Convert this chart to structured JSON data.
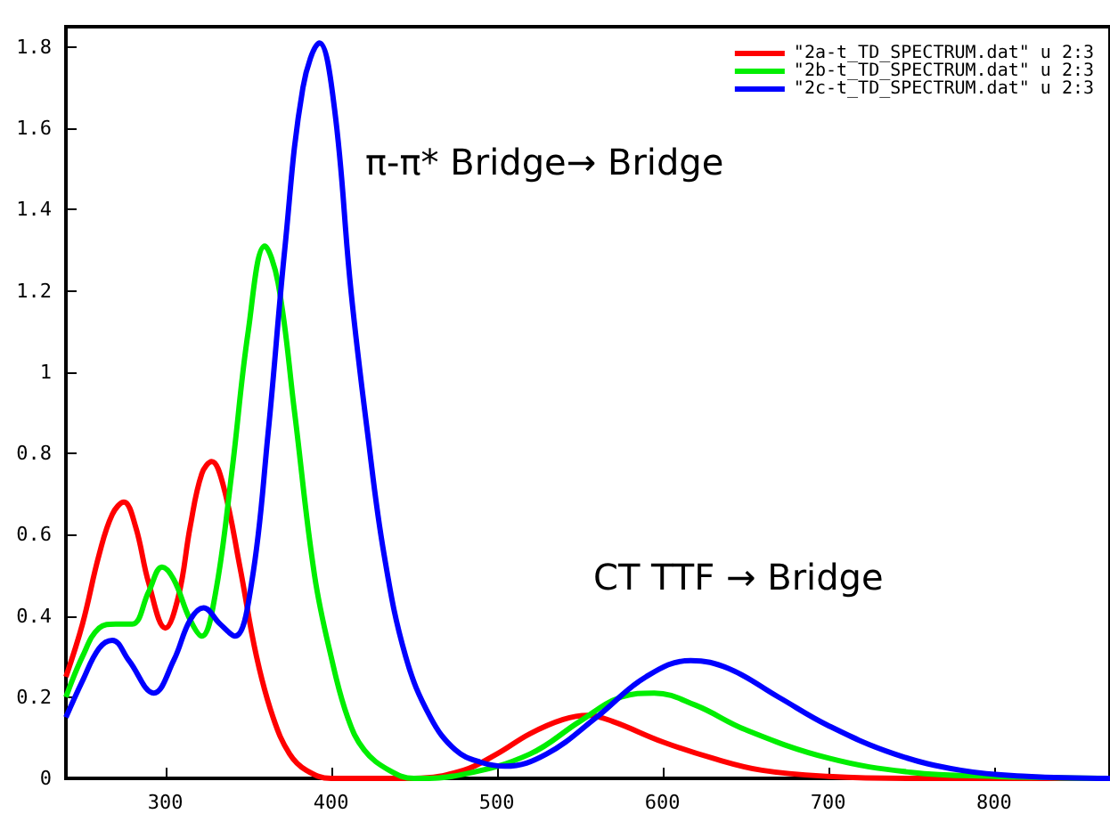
{
  "chart_data": {
    "type": "line",
    "xlim": [
      240,
      870
    ],
    "ylim": [
      0,
      1.85
    ],
    "xticks": [
      300,
      400,
      500,
      600,
      700,
      800
    ],
    "yticks": [
      0,
      0.2,
      0.4,
      0.6,
      0.8,
      1,
      1.2,
      1.4,
      1.6,
      1.8
    ],
    "grid": false,
    "legend": "top right",
    "marker": "none",
    "line_style": "solid",
    "annotations": [
      "π-π* Bridge→ Bridge",
      "CT TTF → Bridge"
    ],
    "series": [
      {
        "name": "\"2a-t_TD_SPECTRUM.dat\" u 2:3",
        "color": "#ff0000",
        "x": [
          240,
          250,
          260,
          268,
          275,
          282,
          290,
          300,
          308,
          315,
          322,
          328,
          335,
          345,
          355,
          365,
          375,
          385,
          400,
          450,
          480,
          500,
          520,
          540,
          555,
          570,
          600,
          630,
          660,
          700,
          750,
          870
        ],
        "values": [
          0.25,
          0.38,
          0.55,
          0.65,
          0.68,
          0.62,
          0.48,
          0.37,
          0.45,
          0.62,
          0.75,
          0.78,
          0.72,
          0.52,
          0.3,
          0.15,
          0.06,
          0.02,
          0,
          0,
          0.02,
          0.06,
          0.11,
          0.145,
          0.155,
          0.14,
          0.09,
          0.05,
          0.02,
          0.005,
          0,
          0
        ]
      },
      {
        "name": "\"2b-t_TD_SPECTRUM.dat\" u 2:3",
        "color": "#00ee00",
        "x": [
          240,
          250,
          260,
          270,
          280,
          290,
          298,
          305,
          315,
          322,
          330,
          340,
          350,
          360,
          368,
          378,
          390,
          400,
          410,
          420,
          435,
          450,
          480,
          520,
          550,
          575,
          595,
          620,
          650,
          700,
          750,
          800,
          870
        ],
        "values": [
          0.2,
          0.3,
          0.37,
          0.38,
          0.38,
          0.46,
          0.52,
          0.49,
          0.39,
          0.35,
          0.45,
          0.75,
          1.1,
          1.31,
          1.22,
          0.9,
          0.5,
          0.3,
          0.15,
          0.07,
          0.02,
          0,
          0.01,
          0.06,
          0.14,
          0.2,
          0.21,
          0.18,
          0.12,
          0.05,
          0.015,
          0.005,
          0
        ]
      },
      {
        "name": "\"2c-t_TD_SPECTRUM.dat\" u 2:3",
        "color": "#0000ff",
        "x": [
          240,
          250,
          260,
          268,
          278,
          293,
          305,
          315,
          323,
          333,
          342,
          352,
          362,
          372,
          383,
          393,
          402,
          412,
          422,
          432,
          445,
          460,
          475,
          490,
          505,
          530,
          560,
          590,
          617,
          640,
          670,
          700,
          740,
          780,
          820,
          870
        ],
        "values": [
          0.15,
          0.24,
          0.32,
          0.34,
          0.29,
          0.21,
          0.29,
          0.39,
          0.42,
          0.38,
          0.35,
          0.48,
          0.85,
          1.3,
          1.7,
          1.81,
          1.65,
          1.2,
          0.85,
          0.55,
          0.3,
          0.15,
          0.07,
          0.04,
          0.03,
          0.06,
          0.15,
          0.25,
          0.29,
          0.27,
          0.2,
          0.13,
          0.06,
          0.02,
          0.005,
          0
        ]
      }
    ]
  }
}
